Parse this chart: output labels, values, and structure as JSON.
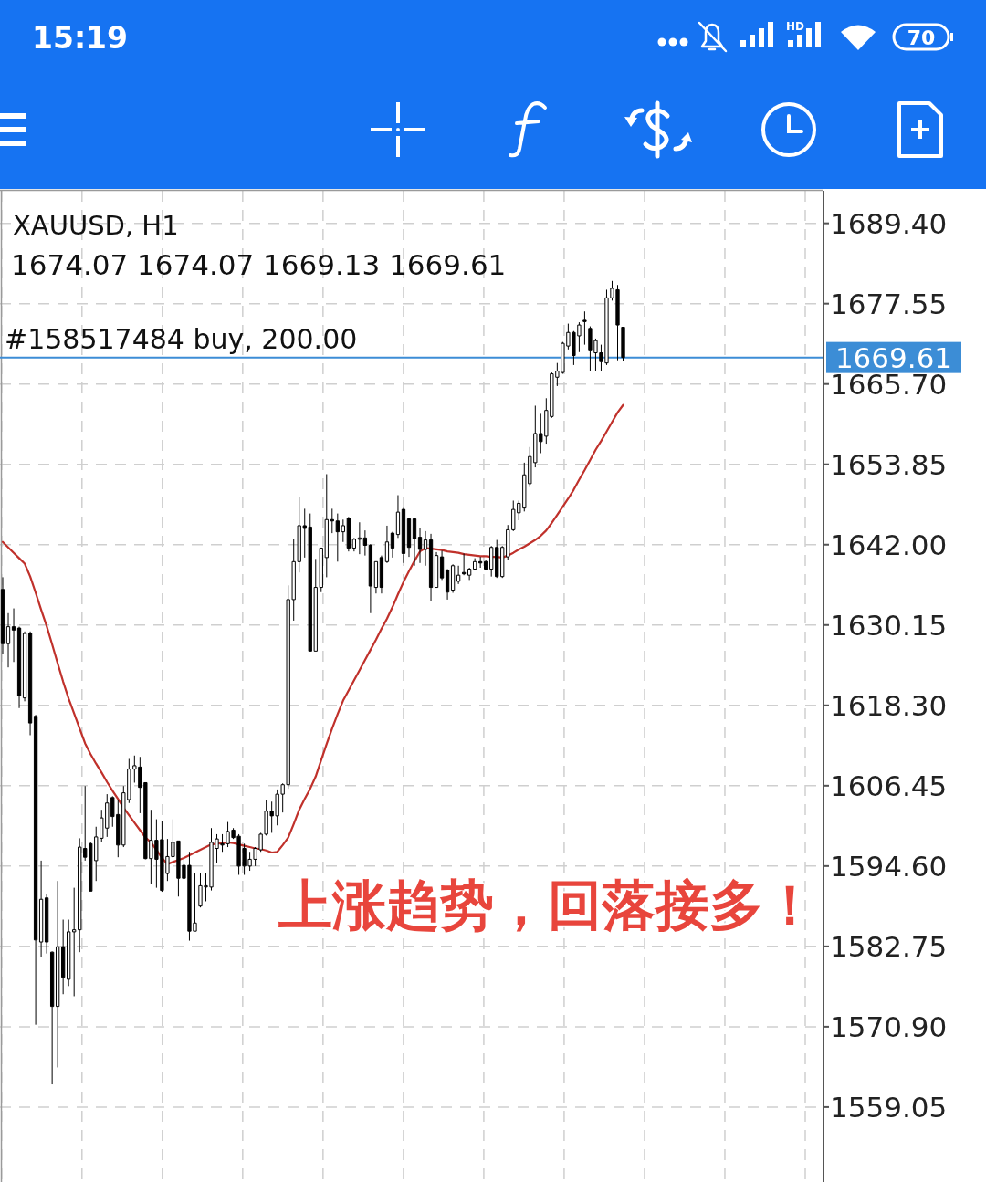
{
  "chart_data": {
    "type": "candlestick",
    "title": "XAUUSD, H1",
    "subtitle": "1674.07 1674.07 1669.13 1669.61",
    "annotations": [
      "上涨趋势，回落接多！",
      {
        "text": "#158517484 buy, 200.00",
        "y": 1669.61
      },
      "15:19",
      "HD",
      "70"
    ],
    "categories": [
      null,
      null,
      null,
      null,
      null,
      null,
      null,
      null,
      null,
      null,
      null,
      null,
      null,
      null,
      null,
      null,
      null,
      null,
      null,
      null,
      null,
      null,
      null,
      null,
      null,
      null,
      null,
      null,
      null,
      null,
      null,
      null,
      null,
      null,
      null,
      null,
      null,
      null,
      null,
      null,
      null,
      null,
      null,
      null,
      null,
      null,
      null,
      null,
      null,
      null,
      null,
      null,
      null,
      null,
      null,
      null,
      null,
      null,
      null,
      null,
      null,
      null,
      null,
      null,
      null,
      null,
      null,
      null,
      null,
      null,
      null,
      null,
      null,
      null,
      null,
      null,
      null,
      null,
      null,
      null,
      null,
      null,
      null,
      null,
      null,
      null,
      null,
      null,
      null,
      null,
      null,
      null,
      null,
      null,
      null,
      null,
      null,
      null,
      null,
      null,
      null,
      null,
      null,
      null,
      null,
      null,
      null,
      null,
      null,
      null,
      null,
      null,
      null,
      null
    ],
    "color": "#000000",
    "ohlc": [
      [
        1635.4,
        1637.2,
        1625.9,
        1627.4
      ],
      [
        1627.4,
        1631.9,
        1623.9,
        1629.9
      ],
      [
        1629.9,
        1632.6,
        1624.7,
        1629.4
      ],
      [
        1629.7,
        1629.9,
        1617.9,
        1619.7
      ],
      [
        1619.4,
        1629.2,
        1618.9,
        1628.9
      ],
      [
        1628.9,
        1629.2,
        1613.9,
        1615.7
      ],
      [
        1616.7,
        1616.9,
        1571.2,
        1583.7
      ],
      [
        1583.4,
        1595.4,
        1581.2,
        1589.7
      ],
      [
        1589.9,
        1590.4,
        1581.7,
        1583.4
      ],
      [
        1581.9,
        1582.0,
        1562.4,
        1573.9
      ],
      [
        1573.9,
        1592.4,
        1564.9,
        1582.7
      ],
      [
        1582.7,
        1586.7,
        1575.7,
        1578.2
      ],
      [
        1577.9,
        1586.7,
        1576.9,
        1584.9
      ],
      [
        1584.9,
        1591.4,
        1575.4,
        1585.2
      ],
      [
        1585.2,
        1598.7,
        1581.9,
        1597.4
      ],
      [
        1597.2,
        1606.4,
        1595.4,
        1595.9
      ],
      [
        1597.9,
        1598.2,
        1590.9,
        1590.9
      ],
      [
        1595.4,
        1600.4,
        1592.4,
        1598.9
      ],
      [
        1598.7,
        1602.9,
        1598.2,
        1601.7
      ],
      [
        1600.2,
        1605.2,
        1598.9,
        1603.9
      ],
      [
        1604.7,
        1604.9,
        1600.4,
        1601.9
      ],
      [
        1602.2,
        1604.4,
        1595.9,
        1597.7
      ],
      [
        1597.7,
        1606.4,
        1597.4,
        1605.4
      ],
      [
        1604.4,
        1610.4,
        1603.9,
        1608.9
      ],
      [
        1608.9,
        1610.9,
        1606.9,
        1609.4
      ],
      [
        1609.2,
        1610.7,
        1602.4,
        1606.2
      ],
      [
        1606.9,
        1606.9,
        1595.6,
        1595.7
      ],
      [
        1595.7,
        1602.9,
        1592.0,
        1598.4
      ],
      [
        1598.4,
        1601.5,
        1591.4,
        1595.6
      ],
      [
        1598.5,
        1601.3,
        1590.8,
        1591.0
      ],
      [
        1593.5,
        1598.6,
        1592.4,
        1596.0
      ],
      [
        1596.0,
        1601.5,
        1595.8,
        1598.1
      ],
      [
        1598.3,
        1598.3,
        1590.1,
        1592.8
      ],
      [
        1594.7,
        1595.6,
        1592.6,
        1592.8
      ],
      [
        1594.7,
        1596.7,
        1583.6,
        1585.0
      ],
      [
        1585.0,
        1593.5,
        1585.0,
        1586.2
      ],
      [
        1588.7,
        1593.5,
        1588.5,
        1591.7
      ],
      [
        1591.7,
        1593.5,
        1589.4,
        1591.5
      ],
      [
        1591.5,
        1600.2,
        1591.0,
        1598.1
      ],
      [
        1597.2,
        1599.3,
        1595.1,
        1598.6
      ],
      [
        1597.9,
        1599.3,
        1596.7,
        1597.7
      ],
      [
        1597.9,
        1601.1,
        1597.4,
        1599.7
      ],
      [
        1599.9,
        1600.2,
        1598.6,
        1598.8
      ],
      [
        1599.0,
        1599.3,
        1593.3,
        1594.6
      ],
      [
        1597.2,
        1597.9,
        1593.3,
        1594.6
      ],
      [
        1594.6,
        1596.7,
        1593.9,
        1595.6
      ],
      [
        1595.6,
        1597.4,
        1594.6,
        1597.2
      ],
      [
        1597.0,
        1599.5,
        1596.7,
        1599.3
      ],
      [
        1599.3,
        1604.3,
        1599.1,
        1602.7
      ],
      [
        1602.7,
        1604.1,
        1599.5,
        1602.0
      ],
      [
        1602.0,
        1605.9,
        1600.6,
        1605.2
      ],
      [
        1605.2,
        1606.8,
        1602.5,
        1606.6
      ],
      [
        1606.6,
        1636.0,
        1606.0,
        1633.9
      ],
      [
        1633.9,
        1642.8,
        1630.8,
        1639.5
      ],
      [
        1639.5,
        1649.0,
        1637.9,
        1644.8
      ],
      [
        1644.8,
        1647.3,
        1640.1,
        1644.4
      ],
      [
        1644.6,
        1646.6,
        1626.3,
        1626.3
      ],
      [
        1626.3,
        1639.9,
        1626.3,
        1635.7
      ],
      [
        1635.7,
        1641.5,
        1635.0,
        1641.5
      ],
      [
        1640.1,
        1652.4,
        1637.2,
        1645.7
      ],
      [
        1645.7,
        1647.3,
        1643.7,
        1645.5
      ],
      [
        1645.5,
        1646.6,
        1639.5,
        1643.9
      ],
      [
        1643.9,
        1645.7,
        1642.4,
        1644.8
      ],
      [
        1645.9,
        1646.1,
        1641.0,
        1641.5
      ],
      [
        1641.5,
        1643.0,
        1641.0,
        1642.8
      ],
      [
        1642.8,
        1645.3,
        1640.6,
        1643.0
      ],
      [
        1643.0,
        1644.1,
        1640.4,
        1641.9
      ],
      [
        1641.9,
        1642.1,
        1631.9,
        1635.9
      ],
      [
        1635.7,
        1639.5,
        1634.8,
        1639.5
      ],
      [
        1640.1,
        1640.4,
        1634.8,
        1635.7
      ],
      [
        1639.5,
        1644.8,
        1639.3,
        1642.4
      ],
      [
        1643.7,
        1643.9,
        1640.1,
        1641.5
      ],
      [
        1643.5,
        1649.3,
        1643.0,
        1646.8
      ],
      [
        1647.2,
        1647.4,
        1639.3,
        1640.7
      ],
      [
        1645.8,
        1646.0,
        1640.2,
        1641.6
      ],
      [
        1645.8,
        1645.8,
        1638.9,
        1642.9
      ],
      [
        1643.1,
        1644.5,
        1639.3,
        1641.3
      ],
      [
        1641.3,
        1644.0,
        1638.9,
        1642.7
      ],
      [
        1642.7,
        1643.6,
        1633.7,
        1635.7
      ],
      [
        1635.7,
        1640.9,
        1635.7,
        1640.4
      ],
      [
        1640.2,
        1641.1,
        1636.8,
        1637.1
      ],
      [
        1638.2,
        1638.4,
        1633.9,
        1635.0
      ],
      [
        1635.3,
        1639.1,
        1634.9,
        1638.9
      ],
      [
        1636.6,
        1638.9,
        1636.2,
        1637.5
      ],
      [
        1637.9,
        1640.7,
        1637.5,
        1637.7
      ],
      [
        1637.5,
        1638.6,
        1636.8,
        1638.4
      ],
      [
        1638.4,
        1640.0,
        1638.2,
        1639.5
      ],
      [
        1639.5,
        1640.2,
        1638.6,
        1639.3
      ],
      [
        1639.5,
        1639.8,
        1638.2,
        1638.4
      ],
      [
        1638.4,
        1641.8,
        1637.3,
        1641.6
      ],
      [
        1641.6,
        1642.7,
        1637.1,
        1637.3
      ],
      [
        1637.3,
        1641.8,
        1637.1,
        1641.6
      ],
      [
        1640.2,
        1644.9,
        1639.7,
        1644.2
      ],
      [
        1644.2,
        1648.5,
        1644.0,
        1647.2
      ],
      [
        1646.7,
        1648.5,
        1645.6,
        1648.1
      ],
      [
        1647.4,
        1654.1,
        1646.9,
        1652.3
      ],
      [
        1651.0,
        1656.4,
        1650.5,
        1655.0
      ],
      [
        1654.1,
        1662.5,
        1653.4,
        1658.4
      ],
      [
        1658.4,
        1661.3,
        1655.5,
        1657.2
      ],
      [
        1658.0,
        1663.6,
        1656.9,
        1661.8
      ],
      [
        1660.9,
        1667.4,
        1660.7,
        1667.2
      ],
      [
        1666.7,
        1668.8,
        1665.4,
        1667.6
      ],
      [
        1667.4,
        1671.9,
        1667.2,
        1671.7
      ],
      [
        1671.3,
        1674.6,
        1670.8,
        1673.3
      ],
      [
        1673.3,
        1673.5,
        1668.5,
        1669.9
      ],
      [
        1672.8,
        1674.8,
        1670.4,
        1674.4
      ],
      [
        1675.1,
        1676.4,
        1671.5,
        1674.9
      ],
      [
        1673.9,
        1674.2,
        1667.6,
        1670.6
      ],
      [
        1670.3,
        1672.4,
        1667.6,
        1672.1
      ],
      [
        1670.3,
        1671.5,
        1667.6,
        1669.0
      ],
      [
        1668.8,
        1679.6,
        1668.5,
        1678.4
      ],
      [
        1678.4,
        1680.9,
        1678.0,
        1679.8
      ],
      [
        1679.6,
        1680.3,
        1669.2,
        1674.4
      ],
      [
        1674.07,
        1674.07,
        1669.13,
        1669.61
      ]
    ],
    "series": [
      {
        "type": "line",
        "color": "#c0312b",
        "values": [
          1642.4,
          1641.6,
          1640.8,
          1640.0,
          1639.2,
          1637.3,
          1634.9,
          1632.4,
          1630.0,
          1627.3,
          1624.5,
          1621.8,
          1619.3,
          1617.1,
          1614.9,
          1612.7,
          1611.1,
          1609.7,
          1608.4,
          1607.0,
          1605.7,
          1604.5,
          1603.2,
          1602.1,
          1601.0,
          1599.9,
          1598.8,
          1598.1,
          1597.0,
          1595.8,
          1594.9,
          1595.2,
          1595.5,
          1595.8,
          1596.2,
          1596.6,
          1597.0,
          1597.4,
          1597.8,
          1597.9,
          1598.0,
          1598.1,
          1598.0,
          1597.8,
          1597.6,
          1597.4,
          1597.2,
          1597.1,
          1596.9,
          1596.6,
          1596.7,
          1597.7,
          1598.8,
          1600.8,
          1602.9,
          1604.5,
          1606.0,
          1607.8,
          1610.2,
          1612.6,
          1614.9,
          1617.0,
          1619.0,
          1620.5,
          1622.0,
          1623.5,
          1625.0,
          1626.5,
          1628.0,
          1629.6,
          1631.1,
          1632.8,
          1634.7,
          1636.5,
          1638.1,
          1639.6,
          1641.0,
          1641.5,
          1641.4,
          1641.3,
          1641.2,
          1641.0,
          1640.9,
          1640.8,
          1640.6,
          1640.5,
          1640.4,
          1640.3,
          1640.3,
          1640.2,
          1640.2,
          1640.1,
          1640.4,
          1640.8,
          1641.3,
          1641.7,
          1642.2,
          1642.7,
          1643.3,
          1644.1,
          1645.2,
          1646.4,
          1647.6,
          1648.8,
          1650.1,
          1651.6,
          1653.0,
          1654.5,
          1656.0,
          1657.3,
          1658.7,
          1660.1,
          1661.5,
          1662.6
        ]
      }
    ],
    "ylim": [
      1548.0,
      1694.2
    ],
    "yticks": [
      {
        "value": 1689.4,
        "label": "1689.40"
      },
      1677.55,
      {
        "value": 1665.7,
        "label": "1665.70"
      },
      1653.85,
      {
        "value": 1642,
        "label": "1642.00"
      },
      1630.15,
      {
        "value": 1618.3,
        "label": "1618.30"
      },
      1606.45,
      {
        "value": 1594.6,
        "label": "1594.60"
      },
      1582.75,
      {
        "value": 1570.9,
        "label": "1570.90"
      },
      1559.05
    ],
    "ref_lines": [
      {
        "axis": "y",
        "value": 1669.61,
        "label": "1669.61",
        "color": "#3c8dd6"
      }
    ],
    "grid": true,
    "tick_labels": "y"
  }
}
